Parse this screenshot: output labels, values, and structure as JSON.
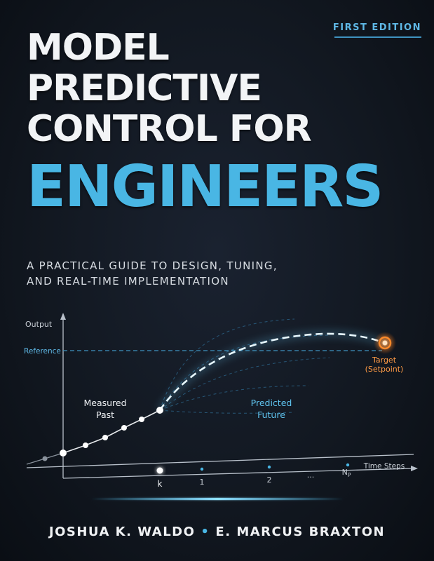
{
  "edition": "FIRST EDITION",
  "title": {
    "line1": "MODEL",
    "line2": "PREDICTIVE",
    "line3": "CONTROL FOR",
    "line4": "ENGINEERS"
  },
  "subtitle": {
    "line1": "A PRACTICAL GUIDE TO DESIGN, TUNING,",
    "line2": "AND REAL-TIME IMPLEMENTATION"
  },
  "diagram": {
    "y_label": "Output",
    "x_label": "Time Steps",
    "reference_label": "Reference",
    "past_label_line1": "Measured",
    "past_label_line2": "Past",
    "future_label_line1": "Predicted",
    "future_label_line2": "Future",
    "target_label_line1": "Target",
    "target_label_line2": "(Setpoint)",
    "ticks": {
      "k": "k",
      "one": "1",
      "two": "2",
      "ellipsis": "...",
      "np_main": "N",
      "np_sub": "P"
    }
  },
  "authors": {
    "author1": "JOSHUA K. WALDO",
    "separator": "•",
    "author2": "E. MARCUS BRAXTON"
  },
  "colors": {
    "accent_blue": "#49b6e4",
    "target_orange": "#ff8a2a"
  }
}
